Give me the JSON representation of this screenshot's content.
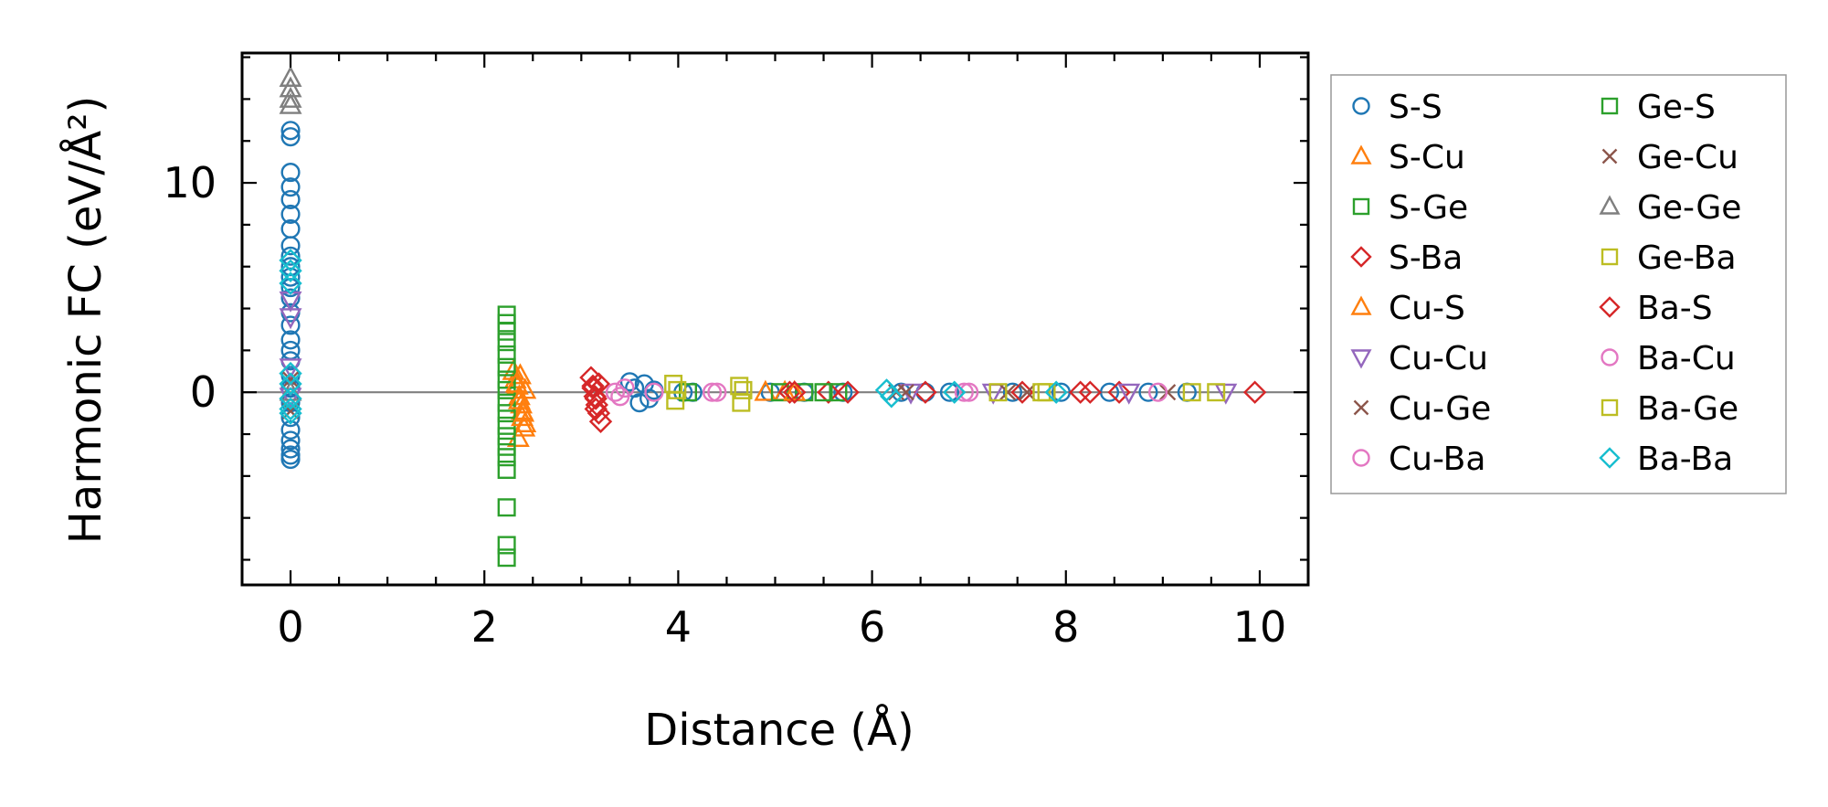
{
  "chart_data": {
    "type": "scatter",
    "title": "",
    "xlabel": "Distance (Å)",
    "ylabel": "Harmonic FC (eV/Å²)",
    "xlim": [
      -0.5,
      10.5
    ],
    "ylim": [
      -9.2,
      16.2
    ],
    "xticks": [
      0,
      2,
      4,
      6,
      8,
      10
    ],
    "yticks": [
      0,
      10
    ],
    "grid": false,
    "reference_line_y": 0,
    "legend_position": "outside-right",
    "legend": [
      {
        "label": "S-S",
        "marker": "circle",
        "color": "#1f77b4"
      },
      {
        "label": "S-Cu",
        "marker": "triangle-up",
        "color": "#ff7f0e"
      },
      {
        "label": "S-Ge",
        "marker": "square",
        "color": "#2ca02c"
      },
      {
        "label": "S-Ba",
        "marker": "diamond",
        "color": "#d62728"
      },
      {
        "label": "Cu-S",
        "marker": "triangle-up",
        "color": "#ff7f0e"
      },
      {
        "label": "Cu-Cu",
        "marker": "triangle-down",
        "color": "#9467bd"
      },
      {
        "label": "Cu-Ge",
        "marker": "x",
        "color": "#8c564b"
      },
      {
        "label": "Cu-Ba",
        "marker": "circle",
        "color": "#e377c2"
      },
      {
        "label": "Ge-S",
        "marker": "square",
        "color": "#2ca02c"
      },
      {
        "label": "Ge-Cu",
        "marker": "x",
        "color": "#8c564b"
      },
      {
        "label": "Ge-Ge",
        "marker": "triangle-up",
        "color": "#7f7f7f"
      },
      {
        "label": "Ge-Ba",
        "marker": "square",
        "color": "#bcbd22"
      },
      {
        "label": "Ba-S",
        "marker": "diamond",
        "color": "#d62728"
      },
      {
        "label": "Ba-Cu",
        "marker": "circle",
        "color": "#e377c2"
      },
      {
        "label": "Ba-Ge",
        "marker": "square",
        "color": "#bcbd22"
      },
      {
        "label": "Ba-Ba",
        "marker": "diamond",
        "color": "#17becf"
      }
    ],
    "series": [
      {
        "name": "S-S",
        "marker": "circle",
        "color": "#1f77b4",
        "x": [
          0,
          0,
          0,
          0,
          0,
          0,
          0,
          0,
          0,
          0,
          0,
          0,
          0,
          0,
          0,
          0,
          0,
          0,
          0,
          0,
          0,
          0,
          0,
          0,
          0,
          0,
          0,
          3.5,
          3.55,
          3.6,
          3.65,
          3.7,
          3.75,
          4.05,
          4.15,
          4.95,
          5.3,
          5.7,
          6.3,
          6.55,
          6.8,
          7.45,
          7.95,
          8.45,
          8.85,
          9.25
        ],
        "y": [
          12.5,
          12.2,
          10.5,
          9.8,
          9.2,
          8.5,
          7.8,
          7.0,
          6.5,
          6.0,
          5.5,
          5.0,
          4.5,
          3.8,
          3.2,
          2.5,
          2.0,
          1.5,
          0.8,
          -0.5,
          -1.2,
          -1.8,
          -2.3,
          -2.7,
          -3.0,
          -3.2,
          0.2,
          0.5,
          0.2,
          -0.5,
          0.4,
          -0.3,
          0.1,
          0,
          0,
          0,
          0,
          0,
          0,
          0,
          0,
          0,
          0,
          0,
          0,
          0
        ]
      },
      {
        "name": "S-Cu",
        "marker": "triangle-up",
        "color": "#ff7f0e",
        "x": [
          2.3,
          2.32,
          2.34,
          2.36,
          2.38,
          2.4,
          2.42,
          2.35,
          2.37,
          2.39,
          2.41,
          4.9,
          5.1
        ],
        "y": [
          1.0,
          0.6,
          0.3,
          -0.2,
          -0.6,
          -1.0,
          -1.5,
          -2.2,
          0.8,
          -0.9,
          -1.7,
          0,
          0
        ]
      },
      {
        "name": "S-Ge",
        "marker": "square",
        "color": "#2ca02c",
        "x": [
          2.23,
          2.23,
          2.23,
          2.23,
          2.23,
          2.23,
          2.23,
          2.23,
          2.23,
          2.23,
          2.23,
          2.23,
          2.23,
          2.23,
          2.23,
          2.23,
          2.23,
          2.23,
          5.05,
          5.3,
          5.65
        ],
        "y": [
          3.7,
          3.3,
          2.9,
          2.4,
          1.8,
          1.2,
          0.6,
          0.1,
          -0.5,
          -1.0,
          -1.6,
          -2.1,
          -2.6,
          -3.1,
          -3.7,
          -5.5,
          -7.3,
          -7.9,
          0,
          0,
          0
        ]
      },
      {
        "name": "S-Ba",
        "marker": "diamond",
        "color": "#d62728",
        "x": [
          3.1,
          3.12,
          3.14,
          3.16,
          3.18,
          3.2,
          3.12,
          3.15,
          3.18,
          5.15,
          5.55,
          6.55,
          7.55,
          8.15,
          8.55,
          9.95
        ],
        "y": [
          0.7,
          0.3,
          -0.2,
          -0.6,
          -1.0,
          -1.4,
          0.2,
          -0.8,
          0.4,
          0,
          0,
          0,
          0,
          0,
          0,
          0
        ]
      },
      {
        "name": "Cu-S",
        "marker": "triangle-up",
        "color": "#ff7f0e",
        "x": [
          2.33,
          2.36,
          2.39,
          2.42,
          5.2
        ],
        "y": [
          0.4,
          -0.4,
          -1.2,
          0.1,
          0
        ]
      },
      {
        "name": "Cu-Cu",
        "marker": "triangle-down",
        "color": "#9467bd",
        "x": [
          0,
          0,
          0,
          0,
          6.4,
          7.25,
          8.65,
          9.65
        ],
        "y": [
          4.4,
          3.6,
          1.2,
          -0.2,
          0,
          0,
          0,
          0
        ]
      },
      {
        "name": "Cu-Ge",
        "marker": "x",
        "color": "#8c564b",
        "x": [
          0,
          0,
          6.35,
          7.4,
          9.05
        ],
        "y": [
          -0.9,
          0.6,
          0,
          0,
          0
        ]
      },
      {
        "name": "Cu-Ba",
        "marker": "circle",
        "color": "#e377c2",
        "x": [
          3.35,
          3.45,
          4.35,
          7.0,
          8.95
        ],
        "y": [
          0.0,
          0.2,
          0,
          0,
          0
        ]
      },
      {
        "name": "Ge-S",
        "marker": "square",
        "color": "#2ca02c",
        "x": [
          4.1,
          5.5
        ],
        "y": [
          0,
          0
        ]
      },
      {
        "name": "Ge-Cu",
        "marker": "x",
        "color": "#8c564b",
        "x": [
          6.25,
          7.6
        ],
        "y": [
          0,
          0
        ]
      },
      {
        "name": "Ge-Ge",
        "marker": "triangle-up",
        "color": "#7f7f7f",
        "x": [
          0,
          0,
          0,
          0,
          0
        ],
        "y": [
          15.0,
          14.5,
          14.0,
          13.7,
          0
        ]
      },
      {
        "name": "Ge-Ba",
        "marker": "square",
        "color": "#bcbd22",
        "x": [
          3.95,
          3.97,
          4.63,
          4.65,
          7.3,
          7.75,
          9.55
        ],
        "y": [
          0.4,
          -0.4,
          0.3,
          -0.5,
          0,
          0,
          0
        ]
      },
      {
        "name": "Ba-S",
        "marker": "diamond",
        "color": "#d62728",
        "x": [
          3.15,
          5.2,
          5.75,
          8.25
        ],
        "y": [
          -0.3,
          0,
          0,
          0
        ]
      },
      {
        "name": "Ba-Cu",
        "marker": "circle",
        "color": "#e377c2",
        "x": [
          3.4,
          3.75,
          4.4,
          6.95
        ],
        "y": [
          -0.2,
          0,
          0,
          0
        ]
      },
      {
        "name": "Ba-Ge",
        "marker": "square",
        "color": "#bcbd22",
        "x": [
          3.99,
          4.67,
          7.8,
          9.3
        ],
        "y": [
          0.1,
          0.1,
          0,
          0
        ]
      },
      {
        "name": "Ba-Ba",
        "marker": "diamond",
        "color": "#17becf",
        "x": [
          0,
          0,
          0,
          0,
          0,
          0,
          0,
          0,
          6.15,
          6.2,
          6.85,
          7.9
        ],
        "y": [
          6.3,
          5.8,
          5.2,
          0.9,
          0.4,
          -0.3,
          -0.8,
          -1.0,
          0.1,
          -0.2,
          0,
          0
        ]
      }
    ]
  }
}
